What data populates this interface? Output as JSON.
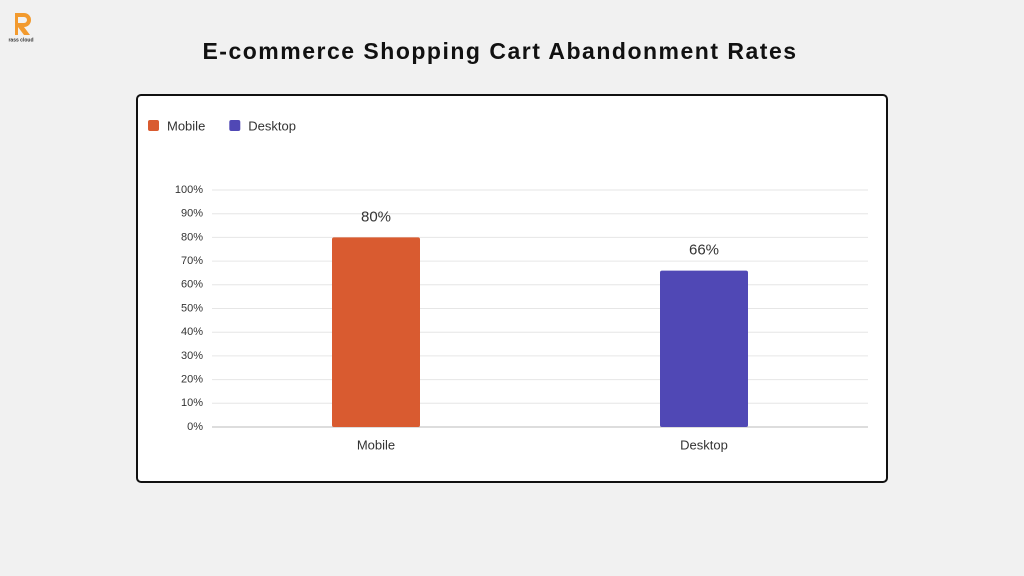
{
  "logo_text": "rass cloud",
  "chart_data": {
    "type": "bar",
    "title": "E-commerce Shopping Cart Abandonment Rates",
    "categories": [
      "Mobile",
      "Desktop"
    ],
    "values": [
      80,
      66
    ],
    "value_labels": [
      "80%",
      "66%"
    ],
    "colors": [
      "#d95b30",
      "#5048b5"
    ],
    "ylim": [
      0,
      100
    ],
    "yticks": [
      {
        "value": 0,
        "label": "0%"
      },
      {
        "value": 10,
        "label": "10%"
      },
      {
        "value": 20,
        "label": "20%"
      },
      {
        "value": 30,
        "label": "30%"
      },
      {
        "value": 40,
        "label": "40%"
      },
      {
        "value": 50,
        "label": "50%"
      },
      {
        "value": 60,
        "label": "60%"
      },
      {
        "value": 70,
        "label": "70%"
      },
      {
        "value": 80,
        "label": "80%"
      },
      {
        "value": 90,
        "label": "90%"
      },
      {
        "value": 100,
        "label": "100%"
      }
    ],
    "grid": true,
    "legend": "top-left"
  }
}
